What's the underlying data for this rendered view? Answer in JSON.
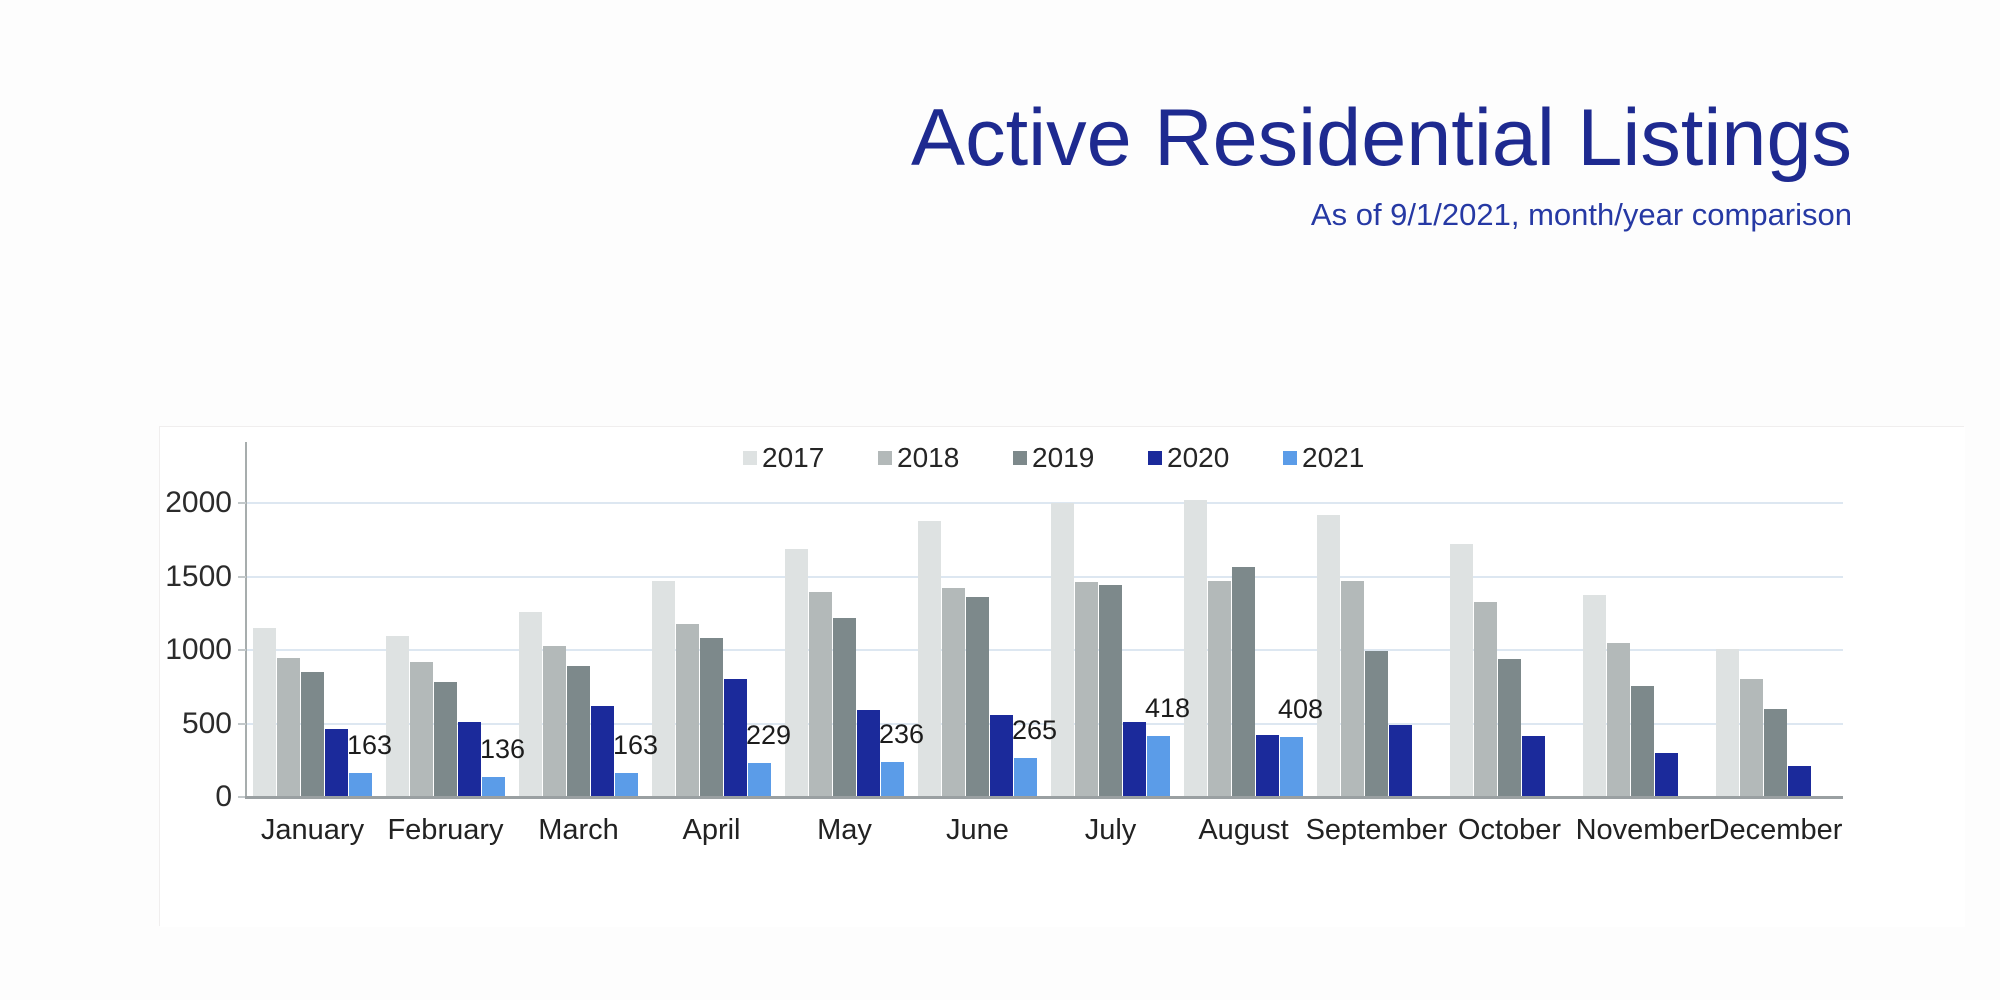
{
  "page": {
    "title": "Active Residential Listings",
    "subtitle": "As of 9/1/2021, month/year comparison"
  },
  "chart_data": {
    "type": "bar",
    "title": "Active Residential Listings",
    "subtitle": "As of 9/1/2021, month/year comparison",
    "categories": [
      "January",
      "February",
      "March",
      "April",
      "May",
      "June",
      "July",
      "August",
      "September",
      "October",
      "November",
      "December"
    ],
    "series": [
      {
        "name": "2017",
        "color": "#dee2e2",
        "values": [
          1150,
          1095,
          1260,
          1470,
          1690,
          1880,
          2000,
          2020,
          1920,
          1720,
          1375,
          1005
        ]
      },
      {
        "name": "2018",
        "color": "#b3b9b9",
        "values": [
          945,
          915,
          1030,
          1175,
          1395,
          1425,
          1465,
          1470,
          1470,
          1325,
          1050,
          805
        ]
      },
      {
        "name": "2019",
        "color": "#7d898b",
        "values": [
          850,
          780,
          890,
          1080,
          1215,
          1360,
          1445,
          1565,
          990,
          940,
          755,
          600
        ]
      },
      {
        "name": "2020",
        "color": "#1b2a9b",
        "values": [
          465,
          510,
          620,
          805,
          595,
          560,
          510,
          420,
          490,
          415,
          300,
          210
        ]
      },
      {
        "name": "2021",
        "color": "#5b9ce8",
        "values": [
          163,
          136,
          163,
          229,
          236,
          265,
          418,
          408,
          null,
          null,
          null,
          null
        ],
        "show_labels": true
      }
    ],
    "data_labels": [
      "163",
      "136",
      "163",
      "229",
      "236",
      "265",
      "418",
      "408"
    ],
    "y_ticks": [
      "0",
      "500",
      "1000",
      "1500",
      "2000"
    ],
    "ylim": [
      0,
      2400
    ],
    "grid": true,
    "legend_position": "top-center"
  }
}
